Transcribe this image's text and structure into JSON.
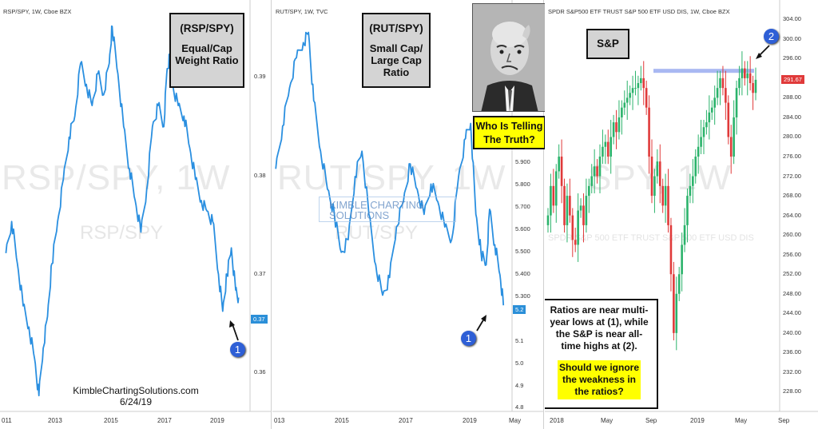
{
  "panels": {
    "rsp": {
      "header": "RSP/SPY, 1W, Cboe BZX",
      "watermark_main": "RSP/SPY, 1W",
      "watermark_sub": "RSP/SPY",
      "label_title": "(RSP/SPY)",
      "label_sub": "Equal/Cap Weight Ratio",
      "last_value": "0.37",
      "marker": "1",
      "credit_name": "KimbleChartingSolutions.com",
      "credit_date": "6/24/19"
    },
    "rut": {
      "header": "RUT/SPY, 1W, TVC",
      "watermark_main": "RUT/SPY, 1W",
      "watermark_sub": "RUT/SPY",
      "watermark_brand_1": "KIMBLE CHARTING",
      "watermark_brand_2": "SOLUTIONS",
      "label_title": "(RUT/SPY)",
      "label_sub": "Small Cap/ Large Cap Ratio",
      "last_value": "5.2",
      "marker": "1",
      "question": "Who Is Telling The Truth?"
    },
    "spy": {
      "header": "SPDR S&P500 ETF TRUST S&P 500 ETF USD DIS, 1W, Cboe BZX",
      "watermark_main": "SPY, 1W",
      "watermark_sub": "SPDR S&P 500 ETF TRUST S&P 500 ETF USD DIS",
      "label_title": "S&P",
      "last_value": "291.67",
      "marker": "2",
      "note_1": "Ratios are near multi-year lows at (1), while the S&P is near all-time highs at (2).",
      "note_2": "Should we ignore the weakness in the ratios?"
    }
  },
  "colors": {
    "line": "#2a8fe0",
    "candle_up": "#2bb36b",
    "candle_down": "#e03a3a",
    "resistance": "#a9b8f2",
    "marker": "#2e5fd6",
    "note_highlight": "#ffff00"
  },
  "chart_data": [
    {
      "type": "line",
      "name": "RSP/SPY",
      "ylim": [
        0.358,
        0.397
      ],
      "yticks": [
        "0.39",
        "0.38",
        "0.37",
        "0.36"
      ],
      "xticks": [
        "011",
        "2013",
        "2015",
        "2017",
        "2019"
      ],
      "x": [
        2011.4,
        2011.6,
        2011.8,
        2012.0,
        2012.2,
        2012.4,
        2012.55,
        2012.7,
        2012.85,
        2013.0,
        2013.2,
        2013.4,
        2013.6,
        2013.8,
        2014.0,
        2014.2,
        2014.4,
        2014.6,
        2014.8,
        2015.0,
        2015.1,
        2015.3,
        2015.5,
        2015.7,
        2015.9,
        2016.1,
        2016.3,
        2016.5,
        2016.7,
        2016.9,
        2017.0,
        2017.1,
        2017.2,
        2017.4,
        2017.6,
        2017.8,
        2018.0,
        2018.2,
        2018.4,
        2018.6,
        2018.8,
        2018.95,
        2019.1,
        2019.25,
        2019.4,
        2019.5
      ],
      "y": [
        0.373,
        0.376,
        0.372,
        0.368,
        0.366,
        0.363,
        0.3595,
        0.364,
        0.367,
        0.372,
        0.376,
        0.38,
        0.384,
        0.386,
        0.391,
        0.389,
        0.387,
        0.39,
        0.388,
        0.391,
        0.3945,
        0.39,
        0.385,
        0.381,
        0.378,
        0.375,
        0.379,
        0.385,
        0.387,
        0.385,
        0.39,
        0.3915,
        0.389,
        0.387,
        0.386,
        0.383,
        0.38,
        0.378,
        0.377,
        0.376,
        0.371,
        0.3675,
        0.371,
        0.3735,
        0.3695,
        0.3688
      ]
    },
    {
      "type": "line",
      "name": "RUT/SPY",
      "ylim": [
        4.82,
        6.36
      ],
      "yticks": [
        "5.900",
        "5.800",
        "5.700",
        "5.600",
        "5.500",
        "5.400",
        "5.300",
        "5.2",
        "5.1",
        "5.0",
        "4.9",
        "4.8"
      ],
      "xticks": [
        "013",
        "2015",
        "2017",
        "2019",
        "May"
      ],
      "x": [
        2012.9,
        2013.1,
        2013.3,
        2013.5,
        2013.7,
        2013.85,
        2014.0,
        2014.2,
        2014.4,
        2014.6,
        2014.8,
        2015.0,
        2015.2,
        2015.4,
        2015.6,
        2015.8,
        2016.0,
        2016.2,
        2016.4,
        2016.6,
        2016.8,
        2017.0,
        2017.2,
        2017.4,
        2017.6,
        2017.8,
        2018.0,
        2018.2,
        2018.4,
        2018.55,
        2018.7,
        2018.85,
        2019.0,
        2019.1,
        2019.25,
        2019.4,
        2019.5
      ],
      "y": [
        5.78,
        5.95,
        6.1,
        6.22,
        6.28,
        6.32,
        6.05,
        5.85,
        5.7,
        5.6,
        5.45,
        5.5,
        5.75,
        5.85,
        5.6,
        5.4,
        5.28,
        5.35,
        5.55,
        5.65,
        5.8,
        5.7,
        5.6,
        5.72,
        5.65,
        5.55,
        5.5,
        5.75,
        5.9,
        5.96,
        5.6,
        5.45,
        5.4,
        5.62,
        5.48,
        5.36,
        5.24
      ]
    },
    {
      "type": "candlestick",
      "name": "SPY",
      "ylim": [
        224,
        306
      ],
      "yticks": [
        "304.00",
        "300.00",
        "296.00",
        "292.00",
        "288.00",
        "284.00",
        "280.00",
        "276.00",
        "272.00",
        "268.00",
        "264.00",
        "260.00",
        "256.00",
        "252.00",
        "248.00",
        "244.00",
        "240.00",
        "236.00",
        "232.00",
        "228.00"
      ],
      "xticks": [
        "2018",
        "May",
        "Sep",
        "2019",
        "May",
        "Sep"
      ],
      "resistance": 293.5,
      "close": [
        264,
        270,
        266,
        273,
        276,
        270,
        262,
        268,
        264,
        259,
        258,
        265,
        266,
        262,
        268,
        270,
        272,
        274,
        272,
        276,
        278,
        279,
        276,
        280,
        283,
        281,
        284,
        286,
        287,
        288,
        289,
        290,
        290,
        291,
        292,
        290,
        286,
        276,
        268,
        272,
        275,
        270,
        266,
        270,
        262,
        252,
        240,
        248,
        252,
        258,
        262,
        268,
        270,
        272,
        276,
        278,
        280,
        282,
        283,
        285,
        286,
        288,
        290,
        292,
        290,
        287,
        280,
        276,
        284,
        290,
        292,
        294,
        292,
        293,
        291,
        289,
        291.67
      ]
    },
    {
      "type": "table",
      "name": "RSP/SPY label",
      "values": []
    }
  ]
}
